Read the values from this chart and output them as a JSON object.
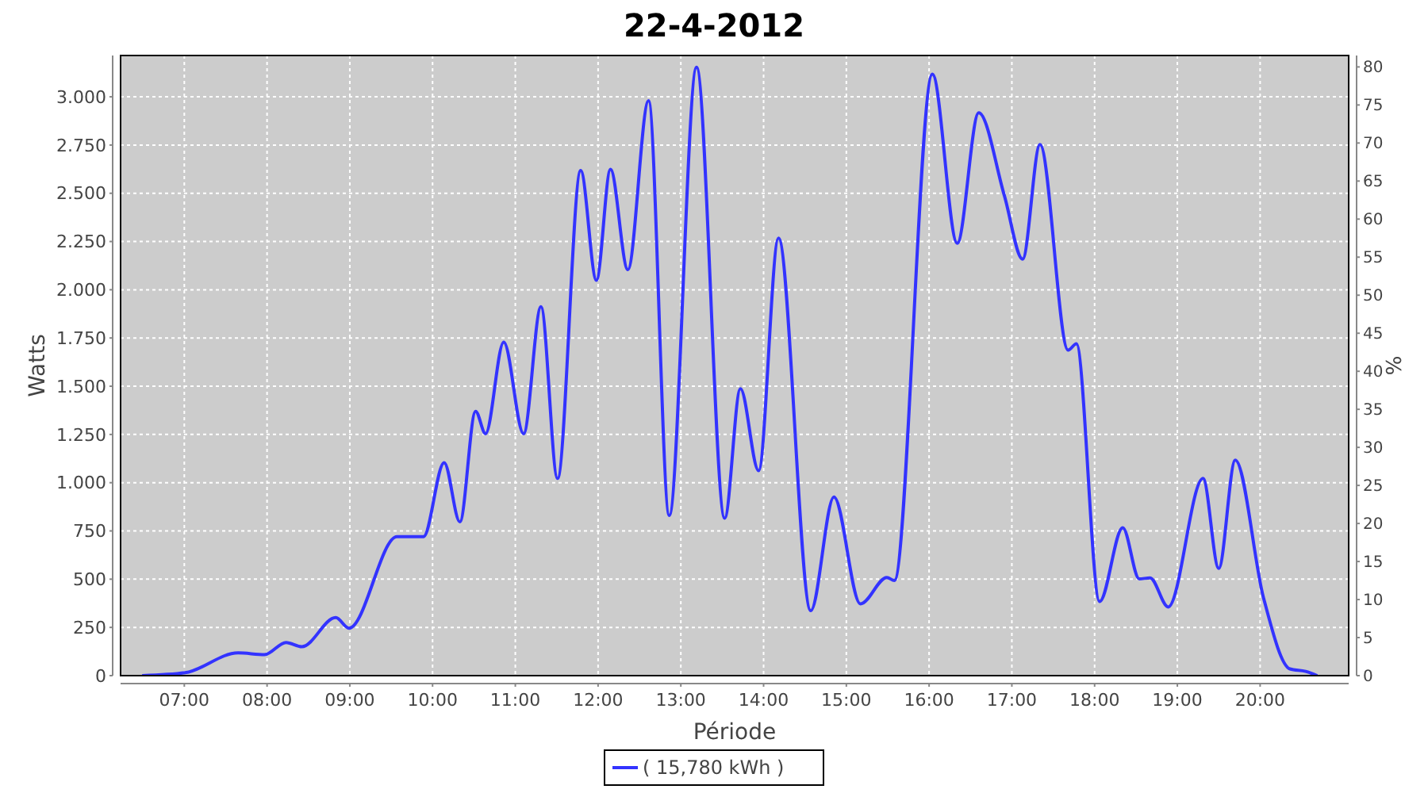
{
  "chart_data": {
    "type": "line",
    "title": "22-4-2012",
    "xlabel": "Période",
    "ylabel": "Watts",
    "y2label": "%",
    "series": [
      {
        "name": "( 15,780 kWh )",
        "color": "#3333ff",
        "x": [
          6.49,
          7.01,
          7.65,
          7.97,
          8.23,
          8.42,
          8.83,
          8.99,
          9.57,
          9.89,
          10.14,
          10.33,
          10.52,
          10.64,
          10.86,
          11.1,
          11.31,
          11.51,
          11.79,
          11.98,
          12.15,
          12.36,
          12.61,
          12.86,
          13.19,
          13.53,
          13.72,
          13.94,
          14.18,
          14.57,
          14.85,
          15.17,
          15.49,
          15.58,
          16.04,
          16.34,
          16.6,
          16.91,
          17.13,
          17.34,
          17.68,
          17.78,
          18.06,
          18.34,
          18.54,
          18.67,
          18.89,
          19.31,
          19.5,
          19.7,
          20.04,
          20.36,
          20.55,
          20.69
        ],
        "values": [
          0,
          15,
          118,
          109,
          172,
          150,
          301,
          246,
          720,
          720,
          1104,
          797,
          1370,
          1254,
          1728,
          1254,
          1912,
          1022,
          2618,
          2049,
          2624,
          2104,
          2980,
          830,
          3153,
          816,
          1487,
          1062,
          2268,
          337,
          926,
          372,
          509,
          493,
          3117,
          2241,
          2917,
          2487,
          2159,
          2753,
          1687,
          1720,
          384,
          767,
          501,
          507,
          356,
          1022,
          556,
          1117,
          405,
          35,
          22,
          0
        ]
      }
    ],
    "xlim": [
      6.23,
      21.07
    ],
    "xticks": [
      {
        "value": 7,
        "label": "07:00"
      },
      {
        "value": 8,
        "label": "08:00"
      },
      {
        "value": 9,
        "label": "09:00"
      },
      {
        "value": 10,
        "label": "10:00"
      },
      {
        "value": 11,
        "label": "11:00"
      },
      {
        "value": 12,
        "label": "12:00"
      },
      {
        "value": 13,
        "label": "13:00"
      },
      {
        "value": 14,
        "label": "14:00"
      },
      {
        "value": 15,
        "label": "15:00"
      },
      {
        "value": 16,
        "label": "16:00"
      },
      {
        "value": 17,
        "label": "17:00"
      },
      {
        "value": 18,
        "label": "18:00"
      },
      {
        "value": 19,
        "label": "19:00"
      },
      {
        "value": 20,
        "label": "20:00"
      }
    ],
    "ylim": [
      0,
      3214
    ],
    "yticks": [
      0,
      250,
      500,
      750,
      {
        "value": 1000,
        "label": "1.000"
      },
      {
        "value": 1250,
        "label": "1.250"
      },
      {
        "value": 1500,
        "label": "1.500"
      },
      {
        "value": 1750,
        "label": "1.750"
      },
      {
        "value": 2000,
        "label": "2.000"
      },
      {
        "value": 2250,
        "label": "2.250"
      },
      {
        "value": 2500,
        "label": "2.500"
      },
      {
        "value": 2750,
        "label": "2.750"
      },
      {
        "value": 3000,
        "label": "3.000"
      }
    ],
    "y2lim": [
      0,
      81.5
    ],
    "y2ticks": [
      0,
      5,
      10,
      15,
      20,
      25,
      30,
      35,
      40,
      45,
      50,
      55,
      60,
      65,
      70,
      75,
      80
    ],
    "grid": true,
    "legend": "bottom",
    "marker": "none",
    "line_style": "solid"
  }
}
